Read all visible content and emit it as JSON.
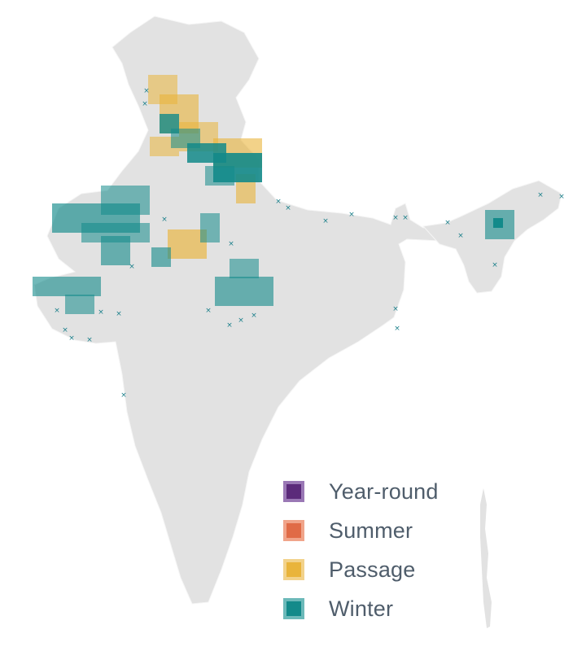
{
  "map": {
    "region": "India",
    "colors": {
      "land": "#e2e2e2",
      "land_stroke": "#ffffff",
      "year_round": "#5b2a7a",
      "summer": "#e06b47",
      "passage": "#e9b43b",
      "winter": "#138a8a",
      "marker": "#1a7f8a"
    }
  },
  "legend": {
    "items": [
      {
        "key": "year_round",
        "label": "Year-round",
        "fill": "#5b2a7a",
        "border": "#9a78b5"
      },
      {
        "key": "summer",
        "label": "Summer",
        "fill": "#e06b47",
        "border": "#f0a48a"
      },
      {
        "key": "passage",
        "label": "Passage",
        "fill": "#e9b43b",
        "border": "#f2d28b"
      },
      {
        "key": "winter",
        "label": "Winter",
        "fill": "#138a8a",
        "border": "#6cb9b9"
      }
    ]
  }
}
